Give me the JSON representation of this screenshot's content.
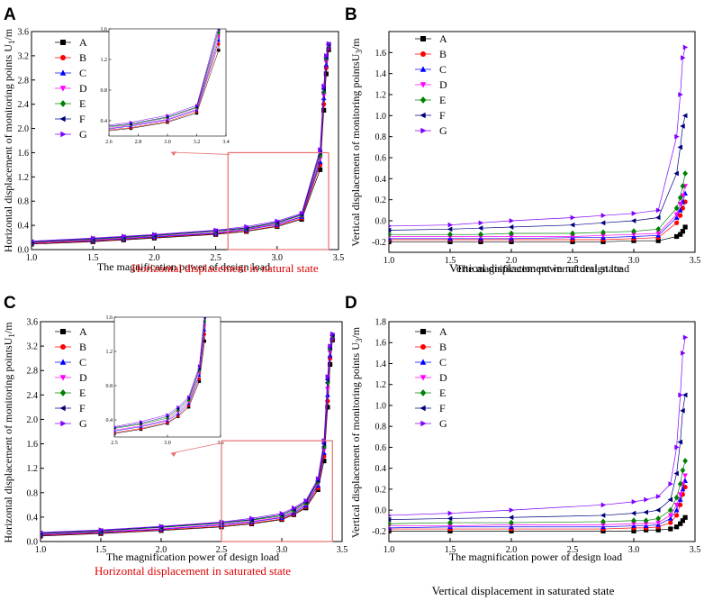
{
  "colors": {
    "A": "#000000",
    "B": "#ff0000",
    "C": "#0000ff",
    "D": "#ff00ff",
    "E": "#008000",
    "F": "#00007f",
    "G": "#8000ff",
    "caption_red": "#e00000",
    "inset_box": "#e87070"
  },
  "series_names": [
    "A",
    "B",
    "C",
    "D",
    "E",
    "F",
    "G"
  ],
  "chart_data": [
    {
      "panel": "A",
      "type": "line",
      "caption": "Horizontal displacement in natural state",
      "caption_color": "red",
      "xlabel": "The magnification power of design load",
      "ylabel": "Horizontal displacement of monitoring points U",
      "ylabel_sub": "1",
      "ylabel_unit": "/m",
      "xlim": [
        1.0,
        3.5
      ],
      "ylim": [
        0.0,
        3.6
      ],
      "xticks": [
        1.0,
        1.5,
        2.0,
        2.5,
        3.0,
        3.5
      ],
      "yticks": [
        0.0,
        0.4,
        0.8,
        1.2,
        1.6,
        2.0,
        2.4,
        2.8,
        3.2,
        3.6
      ],
      "legend": "top-left",
      "x": [
        1.0,
        1.5,
        1.75,
        2.0,
        2.5,
        2.75,
        3.0,
        3.2,
        3.35,
        3.38,
        3.4,
        3.42
      ],
      "series": [
        {
          "name": "A",
          "values": [
            0.09,
            0.13,
            0.16,
            0.19,
            0.25,
            0.3,
            0.38,
            0.5,
            1.32,
            2.3,
            2.9,
            3.3
          ]
        },
        {
          "name": "B",
          "values": [
            0.1,
            0.14,
            0.17,
            0.2,
            0.26,
            0.31,
            0.39,
            0.52,
            1.4,
            2.4,
            3.0,
            3.33
          ]
        },
        {
          "name": "C",
          "values": [
            0.11,
            0.15,
            0.18,
            0.21,
            0.27,
            0.33,
            0.41,
            0.54,
            1.45,
            2.5,
            3.05,
            3.35
          ]
        },
        {
          "name": "D",
          "values": [
            0.11,
            0.16,
            0.19,
            0.22,
            0.28,
            0.34,
            0.42,
            0.55,
            1.5,
            2.55,
            3.1,
            3.36
          ]
        },
        {
          "name": "E",
          "values": [
            0.12,
            0.17,
            0.2,
            0.23,
            0.3,
            0.35,
            0.44,
            0.57,
            1.55,
            2.6,
            3.15,
            3.38
          ]
        },
        {
          "name": "F",
          "values": [
            0.13,
            0.18,
            0.21,
            0.24,
            0.31,
            0.36,
            0.45,
            0.58,
            1.6,
            2.65,
            3.18,
            3.39
          ]
        },
        {
          "name": "G",
          "values": [
            0.14,
            0.19,
            0.22,
            0.25,
            0.32,
            0.38,
            0.47,
            0.6,
            1.65,
            2.7,
            3.2,
            3.4
          ]
        }
      ],
      "inset": {
        "xlim": [
          2.6,
          3.4
        ],
        "ylim": [
          0.2,
          1.6
        ],
        "xticks": [
          2.6,
          2.8,
          3.0,
          3.2,
          3.4
        ],
        "yticks": [
          0.4,
          0.8,
          1.2,
          1.6
        ],
        "zoom_x": [
          2.6,
          3.42
        ],
        "zoom_y": [
          0.0,
          1.6
        ]
      }
    },
    {
      "panel": "B",
      "type": "line",
      "caption": "Vertical displacement in natural state",
      "caption_color": "black",
      "xlabel": "The magnification power of design load",
      "ylabel": "Vertical displacement of monitoring pointsU",
      "ylabel_sub": "3",
      "ylabel_unit": "/m",
      "xlim": [
        1.0,
        3.5
      ],
      "ylim": [
        -0.3,
        1.8
      ],
      "xticks": [
        1.0,
        1.5,
        2.0,
        2.5,
        3.0,
        3.5
      ],
      "yticks": [
        -0.2,
        0.0,
        0.2,
        0.4,
        0.6,
        0.8,
        1.0,
        1.2,
        1.4,
        1.6
      ],
      "legend": "top-left",
      "x": [
        1.0,
        1.5,
        1.75,
        2.0,
        2.5,
        2.75,
        3.0,
        3.2,
        3.35,
        3.38,
        3.4,
        3.42
      ],
      "series": [
        {
          "name": "A",
          "values": [
            -0.2,
            -0.2,
            -0.2,
            -0.2,
            -0.2,
            -0.2,
            -0.19,
            -0.19,
            -0.15,
            -0.13,
            -0.1,
            -0.06
          ]
        },
        {
          "name": "B",
          "values": [
            -0.18,
            -0.18,
            -0.18,
            -0.18,
            -0.18,
            -0.18,
            -0.17,
            -0.16,
            -0.02,
            0.05,
            0.12,
            0.18
          ]
        },
        {
          "name": "C",
          "values": [
            -0.17,
            -0.17,
            -0.17,
            -0.17,
            -0.16,
            -0.16,
            -0.15,
            -0.14,
            0.03,
            0.1,
            0.18,
            0.26
          ]
        },
        {
          "name": "D",
          "values": [
            -0.15,
            -0.15,
            -0.15,
            -0.15,
            -0.15,
            -0.14,
            -0.13,
            -0.12,
            0.06,
            0.16,
            0.24,
            0.33
          ]
        },
        {
          "name": "E",
          "values": [
            -0.13,
            -0.13,
            -0.13,
            -0.12,
            -0.12,
            -0.11,
            -0.1,
            -0.08,
            0.12,
            0.22,
            0.33,
            0.45
          ]
        },
        {
          "name": "F",
          "values": [
            -0.09,
            -0.08,
            -0.07,
            -0.06,
            -0.04,
            -0.02,
            0.0,
            0.03,
            0.45,
            0.7,
            0.9,
            1.0
          ]
        },
        {
          "name": "G",
          "values": [
            -0.05,
            -0.04,
            -0.02,
            0.0,
            0.03,
            0.05,
            0.07,
            0.1,
            0.8,
            1.2,
            1.55,
            1.65
          ]
        }
      ]
    },
    {
      "panel": "C",
      "type": "line",
      "caption": "Horizontal displacement in saturated state",
      "caption_color": "red",
      "xlabel": "The magnification power of design load",
      "ylabel": "Horizontal displacement of monitoring pointsU",
      "ylabel_sub": "1",
      "ylabel_unit": "/m",
      "xlim": [
        1.0,
        3.5
      ],
      "ylim": [
        0.0,
        3.6
      ],
      "xticks": [
        1.0,
        1.5,
        2.0,
        2.5,
        3.0,
        3.5
      ],
      "yticks": [
        0.0,
        0.4,
        0.8,
        1.2,
        1.6,
        2.0,
        2.4,
        2.8,
        3.2,
        3.6
      ],
      "legend": "top-left",
      "x": [
        1.0,
        1.5,
        2.0,
        2.5,
        2.75,
        3.0,
        3.1,
        3.2,
        3.3,
        3.35,
        3.38,
        3.4,
        3.42
      ],
      "series": [
        {
          "name": "A",
          "values": [
            0.09,
            0.13,
            0.18,
            0.24,
            0.29,
            0.36,
            0.44,
            0.55,
            0.85,
            1.32,
            2.2,
            2.9,
            3.3
          ]
        },
        {
          "name": "B",
          "values": [
            0.1,
            0.14,
            0.19,
            0.25,
            0.3,
            0.37,
            0.45,
            0.57,
            0.88,
            1.4,
            2.3,
            3.0,
            3.32
          ]
        },
        {
          "name": "C",
          "values": [
            0.11,
            0.15,
            0.2,
            0.27,
            0.32,
            0.39,
            0.47,
            0.59,
            0.92,
            1.45,
            2.4,
            3.05,
            3.34
          ]
        },
        {
          "name": "D",
          "values": [
            0.12,
            0.16,
            0.21,
            0.28,
            0.33,
            0.4,
            0.49,
            0.61,
            0.95,
            1.5,
            2.5,
            3.1,
            3.35
          ]
        },
        {
          "name": "E",
          "values": [
            0.13,
            0.17,
            0.23,
            0.3,
            0.35,
            0.42,
            0.51,
            0.63,
            0.98,
            1.55,
            2.6,
            3.15,
            3.37
          ]
        },
        {
          "name": "F",
          "values": [
            0.14,
            0.18,
            0.24,
            0.31,
            0.36,
            0.44,
            0.53,
            0.65,
            1.0,
            1.6,
            2.65,
            3.18,
            3.38
          ]
        },
        {
          "name": "G",
          "values": [
            0.15,
            0.19,
            0.25,
            0.32,
            0.38,
            0.46,
            0.55,
            0.67,
            1.03,
            1.65,
            2.7,
            3.2,
            3.4
          ]
        }
      ],
      "inset": {
        "xlim": [
          2.5,
          3.5
        ],
        "ylim": [
          0.2,
          1.6
        ],
        "xticks": [
          2.5,
          3.0,
          3.5
        ],
        "yticks": [
          0.4,
          0.8,
          1.2,
          1.6
        ],
        "zoom_x": [
          2.5,
          3.42
        ],
        "zoom_y": [
          0.0,
          1.65
        ]
      }
    },
    {
      "panel": "D",
      "type": "line",
      "caption": "Vertical displacement in saturated state",
      "caption_color": "black",
      "xlabel": "The magnification power of design load",
      "ylabel": "Vertical displacement of monitoring points U",
      "ylabel_sub": "3",
      "ylabel_unit": "/m",
      "xlim": [
        1.0,
        3.5
      ],
      "ylim": [
        -0.3,
        1.8
      ],
      "xticks": [
        1.0,
        1.5,
        2.0,
        2.5,
        3.0,
        3.5
      ],
      "yticks": [
        -0.2,
        0.0,
        0.2,
        0.4,
        0.6,
        0.8,
        1.0,
        1.2,
        1.4,
        1.6,
        1.8
      ],
      "legend": "top-left",
      "x": [
        1.0,
        1.5,
        2.0,
        2.75,
        3.0,
        3.1,
        3.2,
        3.3,
        3.35,
        3.38,
        3.4,
        3.42
      ],
      "series": [
        {
          "name": "A",
          "values": [
            -0.2,
            -0.2,
            -0.2,
            -0.2,
            -0.2,
            -0.19,
            -0.19,
            -0.18,
            -0.16,
            -0.13,
            -0.1,
            -0.07
          ]
        },
        {
          "name": "B",
          "values": [
            -0.18,
            -0.18,
            -0.18,
            -0.18,
            -0.17,
            -0.17,
            -0.16,
            -0.12,
            -0.05,
            0.05,
            0.15,
            0.22
          ]
        },
        {
          "name": "C",
          "values": [
            -0.17,
            -0.16,
            -0.16,
            -0.16,
            -0.15,
            -0.15,
            -0.14,
            -0.08,
            0.0,
            0.1,
            0.2,
            0.28
          ]
        },
        {
          "name": "D",
          "values": [
            -0.15,
            -0.15,
            -0.14,
            -0.14,
            -0.13,
            -0.13,
            -0.12,
            -0.05,
            0.05,
            0.15,
            0.25,
            0.33
          ]
        },
        {
          "name": "E",
          "values": [
            -0.13,
            -0.12,
            -0.12,
            -0.11,
            -0.1,
            -0.1,
            -0.08,
            0.0,
            0.12,
            0.25,
            0.38,
            0.47
          ]
        },
        {
          "name": "F",
          "values": [
            -0.09,
            -0.08,
            -0.07,
            -0.05,
            -0.03,
            -0.02,
            0.0,
            0.1,
            0.35,
            0.65,
            0.95,
            1.1
          ]
        },
        {
          "name": "G",
          "values": [
            -0.05,
            -0.03,
            0.0,
            0.05,
            0.08,
            0.1,
            0.13,
            0.25,
            0.6,
            1.1,
            1.5,
            1.65
          ]
        }
      ]
    }
  ]
}
